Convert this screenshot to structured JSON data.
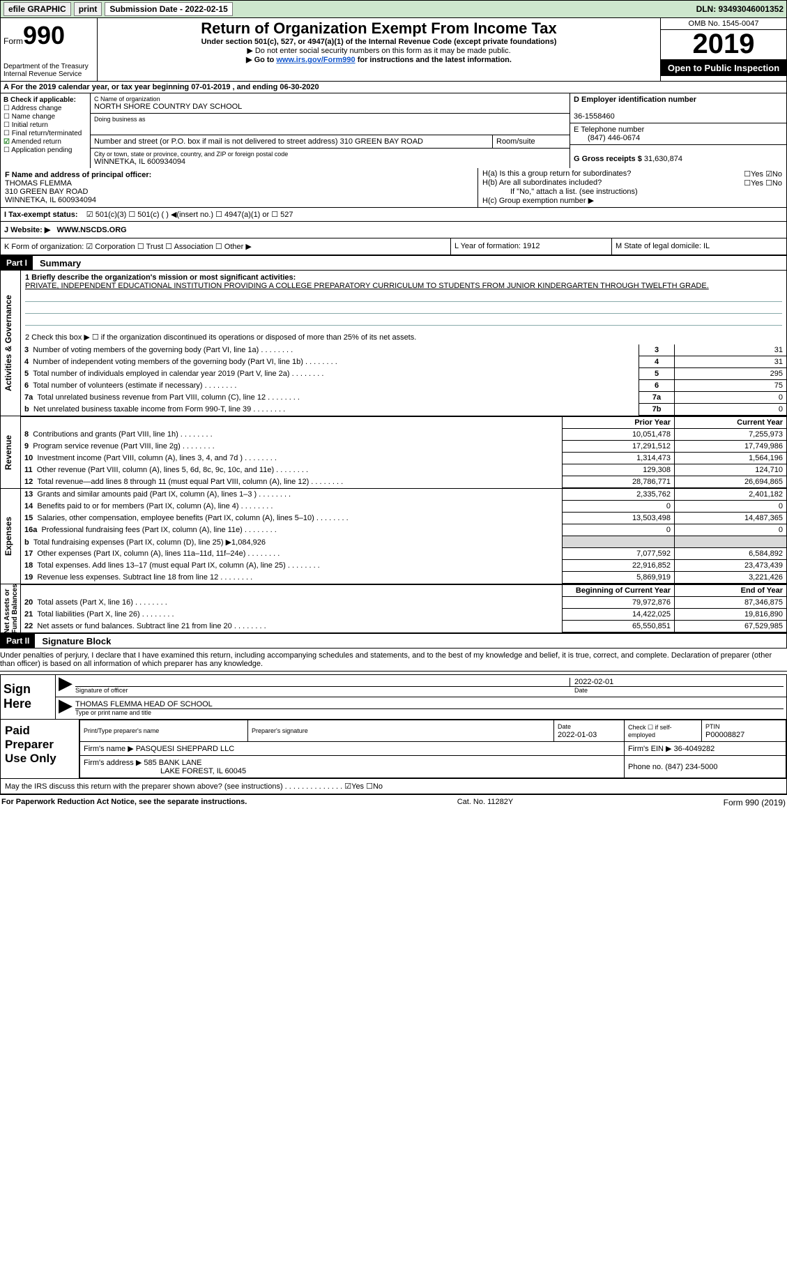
{
  "topbar": {
    "efile": "efile GRAPHIC",
    "print": "print",
    "sub_label": "Submission Date - 2022-02-15",
    "dln": "DLN: 93493046001352"
  },
  "header": {
    "form_prefix": "Form",
    "form_no": "990",
    "dept": "Department of the Treasury\nInternal Revenue Service",
    "title": "Return of Organization Exempt From Income Tax",
    "line1": "Under section 501(c), 527, or 4947(a)(1) of the Internal Revenue Code (except private foundations)",
    "line2": "▶ Do not enter social security numbers on this form as it may be made public.",
    "line3a": "▶ Go to ",
    "line3_link": "www.irs.gov/Form990",
    "line3b": " for instructions and the latest information.",
    "omb": "OMB No. 1545-0047",
    "year": "2019",
    "inspect": "Open to Public Inspection"
  },
  "a_line": "A For the 2019 calendar year, or tax year beginning 07-01-2019  , and ending 06-30-2020",
  "b_block": {
    "hdr": "B Check if applicable:",
    "items": [
      "Address change",
      "Name change",
      "Initial return",
      "Final return/terminated",
      "Amended return",
      "Application pending"
    ],
    "checked_idx": 4
  },
  "c_block": {
    "name_lbl": "C Name of organization",
    "name": "NORTH SHORE COUNTRY DAY SCHOOL",
    "dba_lbl": "Doing business as",
    "addr_lbl": "Number and street (or P.O. box if mail is not delivered to street address)",
    "room_lbl": "Room/suite",
    "addr": "310 GREEN BAY ROAD",
    "city_lbl": "City or town, state or province, country, and ZIP or foreign postal code",
    "city": "WINNETKA, IL  600934094"
  },
  "d_block": {
    "lbl": "D Employer identification number",
    "val": "36-1558460"
  },
  "e_block": {
    "lbl": "E Telephone number",
    "val": "(847) 446-0674"
  },
  "g_block": {
    "lbl": "G Gross receipts $",
    "val": "31,630,874"
  },
  "f_block": {
    "lbl": "F Name and address of principal officer:",
    "name": "THOMAS FLEMMA",
    "addr1": "310 GREEN BAY ROAD",
    "addr2": "WINNETKA, IL  600934094"
  },
  "h_block": {
    "ha": "H(a)  Is this a group return for subordinates?",
    "ha_yn": "☐Yes ☑No",
    "hb": "H(b)  Are all subordinates included?",
    "hb_yn": "☐Yes ☐No",
    "hb_note": "If \"No,\" attach a list. (see instructions)",
    "hc": "H(c)  Group exemption number ▶"
  },
  "i_line": {
    "lbl": "I   Tax-exempt status:",
    "opts": "☑ 501(c)(3)    ☐ 501(c) (  ) ◀(insert no.)    ☐ 4947(a)(1) or   ☐ 527"
  },
  "j_line": {
    "lbl": "J   Website: ▶",
    "val": "WWW.NSCDS.ORG"
  },
  "k_line": {
    "k": "K Form of organization:  ☑ Corporation  ☐ Trust  ☐ Association  ☐ Other ▶",
    "l": "L Year of formation: 1912",
    "m": "M State of legal domicile: IL"
  },
  "part1": {
    "hdr": "Part I",
    "title": "Summary",
    "mission_lbl": "1  Briefly describe the organization's mission or most significant activities:",
    "mission": "PRIVATE, INDEPENDENT EDUCATIONAL INSTITUTION PROVIDING A COLLEGE PREPARATORY CURRICULUM TO STUDENTS FROM JUNIOR KINDERGARTEN THROUGH TWELFTH GRADE.",
    "line2": "2   Check this box ▶ ☐  if the organization discontinued its operations or disposed of more than 25% of its net assets.",
    "gov_rows": [
      {
        "n": "3",
        "txt": "Number of voting members of the governing body (Part VI, line 1a)",
        "box": "3",
        "val": "31"
      },
      {
        "n": "4",
        "txt": "Number of independent voting members of the governing body (Part VI, line 1b)",
        "box": "4",
        "val": "31"
      },
      {
        "n": "5",
        "txt": "Total number of individuals employed in calendar year 2019 (Part V, line 2a)",
        "box": "5",
        "val": "295"
      },
      {
        "n": "6",
        "txt": "Total number of volunteers (estimate if necessary)",
        "box": "6",
        "val": "75"
      },
      {
        "n": "7a",
        "txt": "Total unrelated business revenue from Part VIII, column (C), line 12",
        "box": "7a",
        "val": "0"
      },
      {
        "n": "b",
        "txt": "Net unrelated business taxable income from Form 990-T, line 39",
        "box": "7b",
        "val": "0"
      }
    ],
    "rev_hdr": {
      "prior": "Prior Year",
      "curr": "Current Year"
    },
    "rev_rows": [
      {
        "n": "8",
        "txt": "Contributions and grants (Part VIII, line 1h)",
        "p": "10,051,478",
        "c": "7,255,973"
      },
      {
        "n": "9",
        "txt": "Program service revenue (Part VIII, line 2g)",
        "p": "17,291,512",
        "c": "17,749,986"
      },
      {
        "n": "10",
        "txt": "Investment income (Part VIII, column (A), lines 3, 4, and 7d )",
        "p": "1,314,473",
        "c": "1,564,196"
      },
      {
        "n": "11",
        "txt": "Other revenue (Part VIII, column (A), lines 5, 6d, 8c, 9c, 10c, and 11e)",
        "p": "129,308",
        "c": "124,710"
      },
      {
        "n": "12",
        "txt": "Total revenue—add lines 8 through 11 (must equal Part VIII, column (A), line 12)",
        "p": "28,786,771",
        "c": "26,694,865"
      }
    ],
    "exp_rows": [
      {
        "n": "13",
        "txt": "Grants and similar amounts paid (Part IX, column (A), lines 1–3 )",
        "p": "2,335,762",
        "c": "2,401,182"
      },
      {
        "n": "14",
        "txt": "Benefits paid to or for members (Part IX, column (A), line 4)",
        "p": "0",
        "c": "0"
      },
      {
        "n": "15",
        "txt": "Salaries, other compensation, employee benefits (Part IX, column (A), lines 5–10)",
        "p": "13,503,498",
        "c": "14,487,365"
      },
      {
        "n": "16a",
        "txt": "Professional fundraising fees (Part IX, column (A), line 11e)",
        "p": "0",
        "c": "0"
      },
      {
        "n": "b",
        "txt": "Total fundraising expenses (Part IX, column (D), line 25) ▶1,084,926",
        "p": "",
        "c": "",
        "grey": true
      },
      {
        "n": "17",
        "txt": "Other expenses (Part IX, column (A), lines 11a–11d, 11f–24e)",
        "p": "7,077,592",
        "c": "6,584,892"
      },
      {
        "n": "18",
        "txt": "Total expenses. Add lines 13–17 (must equal Part IX, column (A), line 25)",
        "p": "22,916,852",
        "c": "23,473,439"
      },
      {
        "n": "19",
        "txt": "Revenue less expenses. Subtract line 18 from line 12",
        "p": "5,869,919",
        "c": "3,221,426"
      }
    ],
    "na_hdr": {
      "prior": "Beginning of Current Year",
      "curr": "End of Year"
    },
    "na_rows": [
      {
        "n": "20",
        "txt": "Total assets (Part X, line 16)",
        "p": "79,972,876",
        "c": "87,346,875"
      },
      {
        "n": "21",
        "txt": "Total liabilities (Part X, line 26)",
        "p": "14,422,025",
        "c": "19,816,890"
      },
      {
        "n": "22",
        "txt": "Net assets or fund balances. Subtract line 21 from line 20",
        "p": "65,550,851",
        "c": "67,529,985"
      }
    ],
    "vtabs": {
      "gov": "Activities & Governance",
      "rev": "Revenue",
      "exp": "Expenses",
      "na": "Net Assets or\nFund Balances"
    }
  },
  "part2": {
    "hdr": "Part II",
    "title": "Signature Block",
    "penalty": "Under penalties of perjury, I declare that I have examined this return, including accompanying schedules and statements, and to the best of my knowledge and belief, it is true, correct, and complete. Declaration of preparer (other than officer) is based on all information of which preparer has any knowledge.",
    "sign_here": "Sign Here",
    "sig_of": "Signature of officer",
    "sig_date": "2022-02-01",
    "date_lbl": "Date",
    "officer": "THOMAS FLEMMA  HEAD OF SCHOOL",
    "type_lbl": "Type or print name and title"
  },
  "preparer": {
    "lbl": "Paid Preparer Use Only",
    "h1": "Print/Type preparer's name",
    "h2": "Preparer's signature",
    "h3": "Date",
    "h3v": "2022-01-03",
    "h4": "Check ☐ if self-employed",
    "h5": "PTIN",
    "h5v": "P00008827",
    "firm_lbl": "Firm's name    ▶",
    "firm": "PASQUESI SHEPPARD LLC",
    "ein_lbl": "Firm's EIN ▶",
    "ein": "36-4049282",
    "addr_lbl": "Firm's address ▶",
    "addr": "585 BANK LANE",
    "addr2": "LAKE FOREST, IL  60045",
    "phone_lbl": "Phone no.",
    "phone": "(847) 234-5000"
  },
  "discuss": "May the IRS discuss this return with the preparer shown above? (see instructions)  .  .  .  .  .  .  .  .  .  .  .  .  .  .        ☑Yes  ☐No",
  "foot": {
    "l": "For Paperwork Reduction Act Notice, see the separate instructions.",
    "m": "Cat. No. 11282Y",
    "r": "Form 990 (2019)"
  }
}
